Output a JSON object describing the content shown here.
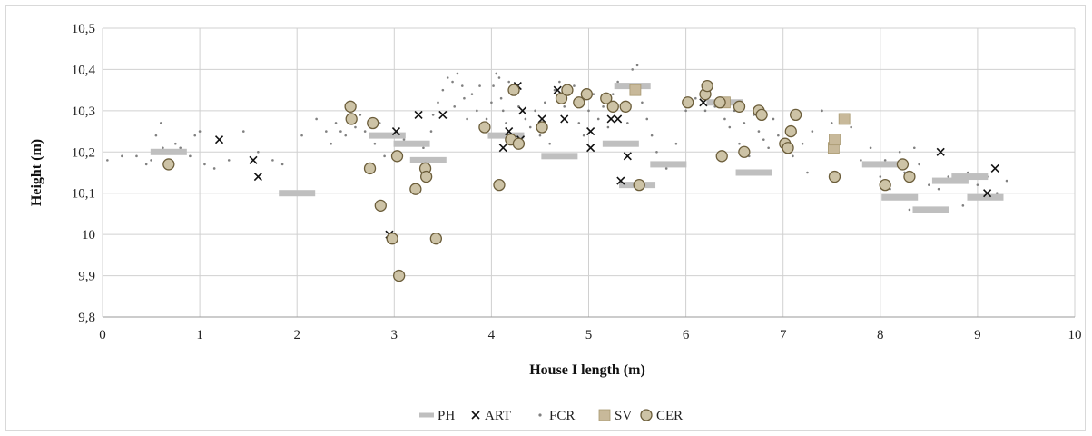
{
  "chart_data": {
    "type": "scatter",
    "title": "",
    "xlabel": "House I length (m)",
    "ylabel": "Height (m)",
    "xlim": [
      0,
      10
    ],
    "ylim": [
      9.8,
      10.5
    ],
    "x_ticks": [
      "0",
      "1",
      "2",
      "3",
      "4",
      "5",
      "6",
      "7",
      "8",
      "9",
      "10"
    ],
    "y_ticks": [
      "9,8",
      "9,9",
      "10",
      "10,1",
      "10,2",
      "10,3",
      "10,4",
      "10,5"
    ],
    "grid": true,
    "legend_position": "bottom",
    "colors": {
      "PH": "#bfbfbf",
      "ART": "#111111",
      "FCR": "#808080",
      "SV": "#c8b99a",
      "CER": "#cdc3a6",
      "CER_edge": "#6b5d3a"
    },
    "series": [
      {
        "name": "PH",
        "marker": "dash",
        "points": [
          [
            0.68,
            10.2
          ],
          [
            2.0,
            10.1
          ],
          [
            2.93,
            10.24
          ],
          [
            3.18,
            10.22
          ],
          [
            3.35,
            10.18
          ],
          [
            4.15,
            10.24
          ],
          [
            4.7,
            10.19
          ],
          [
            5.33,
            10.22
          ],
          [
            5.45,
            10.36
          ],
          [
            5.5,
            10.12
          ],
          [
            5.82,
            10.17
          ],
          [
            6.4,
            10.32
          ],
          [
            6.7,
            10.15
          ],
          [
            8.0,
            10.17
          ],
          [
            8.2,
            10.09
          ],
          [
            8.52,
            10.06
          ],
          [
            8.72,
            10.13
          ],
          [
            8.92,
            10.14
          ],
          [
            9.08,
            10.09
          ]
        ]
      },
      {
        "name": "ART",
        "marker": "x",
        "points": [
          [
            1.2,
            10.23
          ],
          [
            1.55,
            10.18
          ],
          [
            1.6,
            10.14
          ],
          [
            2.95,
            10.0
          ],
          [
            3.02,
            10.25
          ],
          [
            3.25,
            10.29
          ],
          [
            3.5,
            10.29
          ],
          [
            4.12,
            10.21
          ],
          [
            4.18,
            10.25
          ],
          [
            4.27,
            10.36
          ],
          [
            4.3,
            10.23
          ],
          [
            4.32,
            10.3
          ],
          [
            4.52,
            10.28
          ],
          [
            4.68,
            10.35
          ],
          [
            4.75,
            10.28
          ],
          [
            5.02,
            10.25
          ],
          [
            5.02,
            10.21
          ],
          [
            5.23,
            10.28
          ],
          [
            5.3,
            10.28
          ],
          [
            5.33,
            10.13
          ],
          [
            5.4,
            10.19
          ],
          [
            6.18,
            10.32
          ],
          [
            8.62,
            10.2
          ],
          [
            9.1,
            10.1
          ],
          [
            9.18,
            10.16
          ]
        ]
      },
      {
        "name": "FCR",
        "marker": "dot",
        "points": [
          [
            0.05,
            10.18
          ],
          [
            0.2,
            10.19
          ],
          [
            0.35,
            10.19
          ],
          [
            0.45,
            10.17
          ],
          [
            0.5,
            10.18
          ],
          [
            0.55,
            10.24
          ],
          [
            0.6,
            10.27
          ],
          [
            0.62,
            10.21
          ],
          [
            0.75,
            10.22
          ],
          [
            0.8,
            10.21
          ],
          [
            0.9,
            10.19
          ],
          [
            0.95,
            10.24
          ],
          [
            1.0,
            10.25
          ],
          [
            1.05,
            10.17
          ],
          [
            1.15,
            10.16
          ],
          [
            1.3,
            10.18
          ],
          [
            1.45,
            10.25
          ],
          [
            1.6,
            10.2
          ],
          [
            1.75,
            10.18
          ],
          [
            1.85,
            10.17
          ],
          [
            2.05,
            10.24
          ],
          [
            2.2,
            10.28
          ],
          [
            2.3,
            10.25
          ],
          [
            2.35,
            10.22
          ],
          [
            2.4,
            10.27
          ],
          [
            2.45,
            10.25
          ],
          [
            2.5,
            10.24
          ],
          [
            2.6,
            10.26
          ],
          [
            2.65,
            10.29
          ],
          [
            2.7,
            10.25
          ],
          [
            2.8,
            10.22
          ],
          [
            2.85,
            10.27
          ],
          [
            2.9,
            10.19
          ],
          [
            3.1,
            10.23
          ],
          [
            3.2,
            10.18
          ],
          [
            3.3,
            10.21
          ],
          [
            3.38,
            10.25
          ],
          [
            3.4,
            10.29
          ],
          [
            3.45,
            10.32
          ],
          [
            3.5,
            10.35
          ],
          [
            3.55,
            10.38
          ],
          [
            3.6,
            10.37
          ],
          [
            3.62,
            10.31
          ],
          [
            3.65,
            10.39
          ],
          [
            3.7,
            10.36
          ],
          [
            3.72,
            10.33
          ],
          [
            3.75,
            10.28
          ],
          [
            3.8,
            10.34
          ],
          [
            3.85,
            10.3
          ],
          [
            3.88,
            10.36
          ],
          [
            3.9,
            10.26
          ],
          [
            3.95,
            10.28
          ],
          [
            4.0,
            10.32
          ],
          [
            4.02,
            10.36
          ],
          [
            4.05,
            10.39
          ],
          [
            4.08,
            10.38
          ],
          [
            4.1,
            10.33
          ],
          [
            4.12,
            10.3
          ],
          [
            4.15,
            10.27
          ],
          [
            4.18,
            10.37
          ],
          [
            4.22,
            10.34
          ],
          [
            4.28,
            10.31
          ],
          [
            4.35,
            10.28
          ],
          [
            4.4,
            10.26
          ],
          [
            4.45,
            10.3
          ],
          [
            4.5,
            10.24
          ],
          [
            4.55,
            10.32
          ],
          [
            4.6,
            10.22
          ],
          [
            4.65,
            10.35
          ],
          [
            4.7,
            10.37
          ],
          [
            4.75,
            10.31
          ],
          [
            4.8,
            10.34
          ],
          [
            4.85,
            10.36
          ],
          [
            4.9,
            10.27
          ],
          [
            4.95,
            10.24
          ],
          [
            5.0,
            10.3
          ],
          [
            5.05,
            10.34
          ],
          [
            5.1,
            10.28
          ],
          [
            5.15,
            10.31
          ],
          [
            5.2,
            10.26
          ],
          [
            5.25,
            10.34
          ],
          [
            5.3,
            10.37
          ],
          [
            5.35,
            10.3
          ],
          [
            5.4,
            10.27
          ],
          [
            5.45,
            10.4
          ],
          [
            5.5,
            10.41
          ],
          [
            5.55,
            10.32
          ],
          [
            5.6,
            10.28
          ],
          [
            5.65,
            10.24
          ],
          [
            5.7,
            10.2
          ],
          [
            5.8,
            10.16
          ],
          [
            5.9,
            10.22
          ],
          [
            6.0,
            10.3
          ],
          [
            6.1,
            10.33
          ],
          [
            6.2,
            10.3
          ],
          [
            6.25,
            10.35
          ],
          [
            6.3,
            10.31
          ],
          [
            6.4,
            10.28
          ],
          [
            6.45,
            10.26
          ],
          [
            6.5,
            10.3
          ],
          [
            6.55,
            10.22
          ],
          [
            6.6,
            10.27
          ],
          [
            6.65,
            10.19
          ],
          [
            6.7,
            10.29
          ],
          [
            6.75,
            10.25
          ],
          [
            6.8,
            10.23
          ],
          [
            6.85,
            10.21
          ],
          [
            6.9,
            10.28
          ],
          [
            6.95,
            10.24
          ],
          [
            7.0,
            10.22
          ],
          [
            7.1,
            10.19
          ],
          [
            7.2,
            10.22
          ],
          [
            7.25,
            10.15
          ],
          [
            7.3,
            10.25
          ],
          [
            7.4,
            10.3
          ],
          [
            7.5,
            10.27
          ],
          [
            7.55,
            10.2
          ],
          [
            7.6,
            10.28
          ],
          [
            7.7,
            10.26
          ],
          [
            7.8,
            10.18
          ],
          [
            7.9,
            10.21
          ],
          [
            8.0,
            10.14
          ],
          [
            8.05,
            10.18
          ],
          [
            8.1,
            10.11
          ],
          [
            8.2,
            10.2
          ],
          [
            8.25,
            10.15
          ],
          [
            8.3,
            10.06
          ],
          [
            8.35,
            10.21
          ],
          [
            8.4,
            10.17
          ],
          [
            8.5,
            10.12
          ],
          [
            8.6,
            10.11
          ],
          [
            8.7,
            10.14
          ],
          [
            8.8,
            10.13
          ],
          [
            8.85,
            10.07
          ],
          [
            8.9,
            10.15
          ],
          [
            9.0,
            10.12
          ],
          [
            9.1,
            10.14
          ],
          [
            9.2,
            10.1
          ],
          [
            9.3,
            10.13
          ]
        ]
      },
      {
        "name": "SV",
        "marker": "square",
        "points": [
          [
            5.48,
            10.35
          ],
          [
            6.4,
            10.32
          ],
          [
            7.52,
            10.21
          ],
          [
            7.53,
            10.23
          ],
          [
            7.63,
            10.28
          ]
        ]
      },
      {
        "name": "CER",
        "marker": "circle",
        "points": [
          [
            0.68,
            10.17
          ],
          [
            2.55,
            10.31
          ],
          [
            2.56,
            10.28
          ],
          [
            2.75,
            10.16
          ],
          [
            2.78,
            10.27
          ],
          [
            2.86,
            10.07
          ],
          [
            2.98,
            9.99
          ],
          [
            3.03,
            10.19
          ],
          [
            3.05,
            9.9
          ],
          [
            3.22,
            10.11
          ],
          [
            3.32,
            10.16
          ],
          [
            3.33,
            10.14
          ],
          [
            3.43,
            9.99
          ],
          [
            3.93,
            10.26
          ],
          [
            4.08,
            10.12
          ],
          [
            4.2,
            10.23
          ],
          [
            4.23,
            10.35
          ],
          [
            4.28,
            10.22
          ],
          [
            4.52,
            10.26
          ],
          [
            4.72,
            10.33
          ],
          [
            4.78,
            10.35
          ],
          [
            4.9,
            10.32
          ],
          [
            4.98,
            10.34
          ],
          [
            5.18,
            10.33
          ],
          [
            5.25,
            10.31
          ],
          [
            5.38,
            10.31
          ],
          [
            5.52,
            10.12
          ],
          [
            6.02,
            10.32
          ],
          [
            6.2,
            10.34
          ],
          [
            6.22,
            10.36
          ],
          [
            6.35,
            10.32
          ],
          [
            6.37,
            10.19
          ],
          [
            6.55,
            10.31
          ],
          [
            6.6,
            10.2
          ],
          [
            6.75,
            10.3
          ],
          [
            6.78,
            10.29
          ],
          [
            7.02,
            10.22
          ],
          [
            7.05,
            10.21
          ],
          [
            7.08,
            10.25
          ],
          [
            7.13,
            10.29
          ],
          [
            7.53,
            10.14
          ],
          [
            8.05,
            10.12
          ],
          [
            8.23,
            10.17
          ],
          [
            8.3,
            10.14
          ]
        ]
      }
    ]
  }
}
